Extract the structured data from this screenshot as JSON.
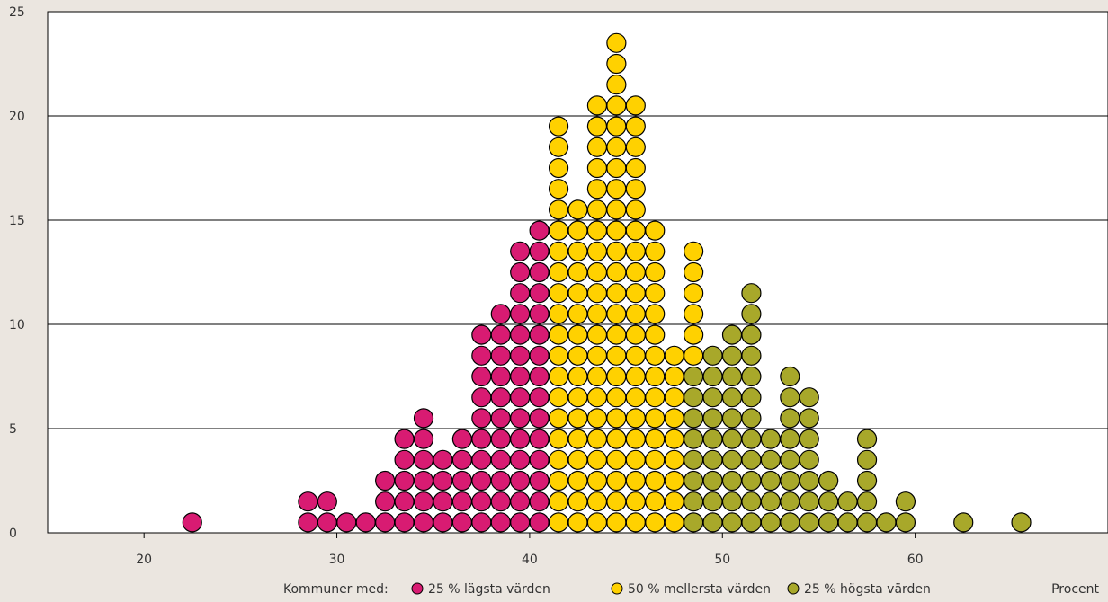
{
  "chart_data": {
    "type": "dot",
    "title": "",
    "xlabel": "Procent",
    "ylabel": "",
    "xlim": [
      15,
      70
    ],
    "ylim": [
      0,
      25
    ],
    "x_ticks": [
      20,
      30,
      40,
      50,
      60
    ],
    "y_ticks": [
      0,
      5,
      10,
      15,
      20,
      25
    ],
    "grid": "horizontal",
    "legend_prefix": "Kommuner med:",
    "legend_position": "bottom",
    "series": [
      {
        "name": "25 % lägsta värden",
        "color": "#d81b72",
        "points": [
          [
            22.5,
            1
          ],
          [
            28.5,
            2
          ],
          [
            29.5,
            2
          ],
          [
            30.5,
            1
          ],
          [
            31.5,
            1
          ],
          [
            32.5,
            3
          ],
          [
            33.5,
            5
          ],
          [
            34.5,
            6
          ],
          [
            35.5,
            4
          ],
          [
            36.5,
            5
          ],
          [
            37.5,
            10
          ],
          [
            38.5,
            11
          ],
          [
            39.5,
            14
          ],
          [
            40.5,
            15
          ]
        ]
      },
      {
        "name": "50 % mellersta värden",
        "color": "#ffd100",
        "points": [
          [
            41.5,
            20
          ],
          [
            42.5,
            16
          ],
          [
            43.5,
            21
          ],
          [
            44.5,
            24
          ],
          [
            45.5,
            21
          ],
          [
            46.5,
            15
          ],
          [
            47.5,
            9
          ],
          [
            48.5,
            6
          ]
        ]
      },
      {
        "name": "25 % högsta värden",
        "color": "#a8a82a",
        "points": [
          [
            48.5,
            8
          ],
          [
            49.5,
            9
          ],
          [
            50.5,
            10
          ],
          [
            51.5,
            12
          ],
          [
            52.5,
            5
          ],
          [
            53.5,
            8
          ],
          [
            54.5,
            7
          ],
          [
            55.5,
            3
          ],
          [
            56.5,
            2
          ],
          [
            57.5,
            5
          ],
          [
            58.5,
            1
          ],
          [
            59.5,
            2
          ],
          [
            62.5,
            1
          ],
          [
            65.5,
            1
          ]
        ]
      }
    ],
    "stack_note": "Column counts; at x=48.5 the lower 5 dots of the high group sit beneath 1 mid-group dot, total 14"
  }
}
